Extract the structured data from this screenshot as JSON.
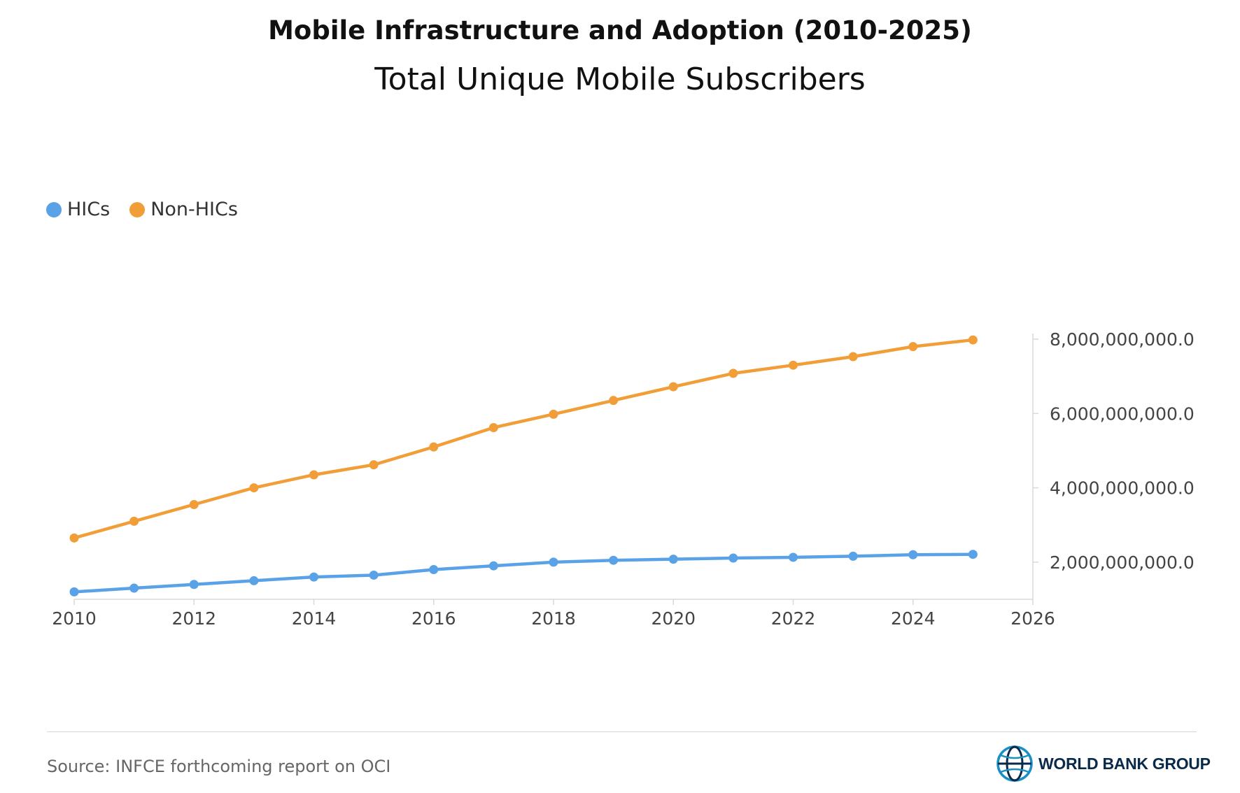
{
  "header": {
    "title": "Mobile Infrastructure and Adoption (2010-2025)",
    "subtitle": "Total Unique Mobile Subscribers"
  },
  "legend": {
    "items": [
      {
        "label": "HICs",
        "color": "#5aa2e8"
      },
      {
        "label": "Non-HICs",
        "color": "#f19e38"
      }
    ]
  },
  "chart_data": {
    "type": "line",
    "title": "Mobile Infrastructure and Adoption (2010-2025)",
    "subtitle": "Total Unique Mobile Subscribers",
    "xlabel": "",
    "ylabel": "",
    "x": [
      2010,
      2011,
      2012,
      2013,
      2014,
      2015,
      2016,
      2017,
      2018,
      2019,
      2020,
      2021,
      2022,
      2023,
      2024,
      2025
    ],
    "xlim": [
      2010,
      2026
    ],
    "ylim": [
      1000000000,
      8000000000
    ],
    "x_ticks": [
      "2010",
      "2012",
      "2014",
      "2016",
      "2018",
      "2020",
      "2022",
      "2024",
      "2026"
    ],
    "y_ticks": [
      {
        "value": 2000000000,
        "label": "2,000,000,000.0"
      },
      {
        "value": 4000000000,
        "label": "4,000,000,000.0"
      },
      {
        "value": 6000000000,
        "label": "6,000,000,000.0"
      },
      {
        "value": 8000000000,
        "label": "8,000,000,000.0"
      }
    ],
    "y_axis_position": "right",
    "grid": false,
    "legend_position": "top-left",
    "series": [
      {
        "name": "HICs",
        "color": "#5aa2e8",
        "values": [
          1200000000,
          1300000000,
          1400000000,
          1500000000,
          1600000000,
          1650000000,
          1800000000,
          1900000000,
          2000000000,
          2050000000,
          2080000000,
          2110000000,
          2130000000,
          2160000000,
          2200000000,
          2210000000
        ]
      },
      {
        "name": "Non-HICs",
        "color": "#f19e38",
        "values": [
          2650000000,
          3100000000,
          3550000000,
          4000000000,
          4350000000,
          4620000000,
          5100000000,
          5620000000,
          5980000000,
          6350000000,
          6720000000,
          7080000000,
          7300000000,
          7530000000,
          7800000000,
          7980000000
        ]
      }
    ]
  },
  "footer": {
    "source": "Source: INFCE forthcoming report on OCI",
    "logo_text": "WORLD BANK GROUP"
  }
}
